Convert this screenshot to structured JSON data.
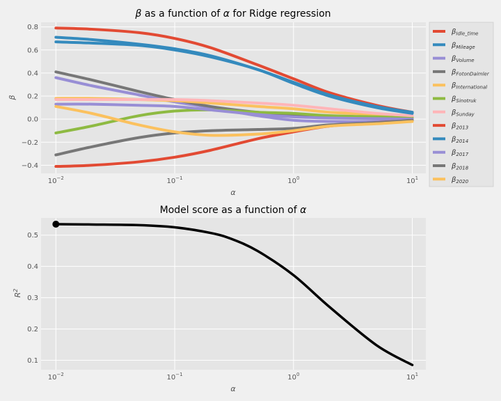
{
  "chart_data": [
    {
      "type": "line",
      "title_prefix": "β",
      "title_middle": " as a function of ",
      "title_alpha": "α",
      "title_suffix": " for Ridge regression",
      "xlabel": "α",
      "ylabel": "β",
      "xscale": "log",
      "xlim": [
        0.0075,
        13
      ],
      "ylim": [
        -0.47,
        0.84
      ],
      "x_tick_labels": [
        {
          "base": "10",
          "exp": "−2"
        },
        {
          "base": "10",
          "exp": "−1"
        },
        {
          "base": "10",
          "exp": "0"
        },
        {
          "base": "10",
          "exp": "1"
        }
      ],
      "y_ticks": [
        -0.4,
        -0.2,
        0.0,
        0.2,
        0.4,
        0.6,
        0.8
      ],
      "y_tick_labels": [
        "−0.4",
        "−0.2",
        "0.0",
        "0.2",
        "0.4",
        "0.6",
        "0.8"
      ],
      "grid": true,
      "legend_position": "outside-right",
      "x": [
        0.01,
        0.02,
        0.05,
        0.1,
        0.2,
        0.5,
        1,
        2,
        5,
        10
      ],
      "series": [
        {
          "sym": "β",
          "sub": "Idle_time",
          "color": "#E24A33",
          "values": [
            0.79,
            0.78,
            0.75,
            0.7,
            0.62,
            0.47,
            0.35,
            0.23,
            0.12,
            0.06
          ]
        },
        {
          "sym": "β",
          "sub": "Mileage",
          "color": "#348ABD",
          "values": [
            0.71,
            0.69,
            0.65,
            0.61,
            0.55,
            0.43,
            0.32,
            0.21,
            0.11,
            0.06
          ]
        },
        {
          "sym": "β",
          "sub": "Volume",
          "color": "#988ED5",
          "values": [
            0.36,
            0.29,
            0.21,
            0.15,
            0.1,
            0.03,
            -0.01,
            -0.02,
            -0.02,
            -0.01
          ]
        },
        {
          "sym": "β",
          "sub": "FotonDaimler",
          "color": "#777777",
          "values": [
            0.41,
            0.34,
            0.24,
            0.17,
            0.11,
            0.06,
            0.04,
            0.02,
            0.01,
            0.005
          ]
        },
        {
          "sym": "β",
          "sub": "International",
          "color": "#FBC15E",
          "values": [
            0.18,
            0.18,
            0.17,
            0.16,
            0.14,
            0.11,
            0.09,
            0.06,
            0.04,
            0.02
          ]
        },
        {
          "sym": "β",
          "sub": "Sinotruk",
          "color": "#8EBA42",
          "values": [
            -0.12,
            -0.06,
            0.03,
            0.07,
            0.08,
            0.06,
            0.05,
            0.03,
            0.02,
            0.01
          ]
        },
        {
          "sym": "β",
          "sub": "Sunday",
          "color": "#FFB5B8",
          "values": [
            0.17,
            0.17,
            0.17,
            0.17,
            0.16,
            0.14,
            0.12,
            0.09,
            0.05,
            0.03
          ]
        },
        {
          "sym": "β",
          "sub": "2013",
          "color": "#E24A33",
          "values": [
            -0.41,
            -0.4,
            -0.37,
            -0.33,
            -0.27,
            -0.17,
            -0.11,
            -0.06,
            -0.03,
            -0.01
          ]
        },
        {
          "sym": "β",
          "sub": "2014",
          "color": "#348ABD",
          "values": [
            0.67,
            0.66,
            0.64,
            0.6,
            0.54,
            0.43,
            0.31,
            0.2,
            0.1,
            0.05
          ]
        },
        {
          "sym": "β",
          "sub": "2017",
          "color": "#988ED5",
          "values": [
            0.13,
            0.13,
            0.12,
            0.11,
            0.08,
            0.04,
            0.02,
            0.01,
            0.005,
            0.0
          ]
        },
        {
          "sym": "β",
          "sub": "2018",
          "color": "#777777",
          "values": [
            -0.31,
            -0.24,
            -0.16,
            -0.12,
            -0.1,
            -0.09,
            -0.08,
            -0.05,
            -0.03,
            -0.01
          ]
        },
        {
          "sym": "β",
          "sub": "2020",
          "color": "#FBC15E",
          "values": [
            0.11,
            0.05,
            -0.05,
            -0.11,
            -0.14,
            -0.13,
            -0.1,
            -0.06,
            -0.04,
            -0.02
          ]
        }
      ]
    },
    {
      "type": "line",
      "title_prefix": "Model score as a function of ",
      "title_alpha": "α",
      "xlabel": "α",
      "ylabel_base": "R",
      "ylabel_exp": "2",
      "xscale": "log",
      "xlim": [
        0.0075,
        13
      ],
      "ylim": [
        0.07,
        0.555
      ],
      "x_tick_labels": [
        {
          "base": "10",
          "exp": "−2"
        },
        {
          "base": "10",
          "exp": "−1"
        },
        {
          "base": "10",
          "exp": "0"
        },
        {
          "base": "10",
          "exp": "1"
        }
      ],
      "y_ticks": [
        0.1,
        0.2,
        0.3,
        0.4,
        0.5
      ],
      "y_tick_labels": [
        "0.1",
        "0.2",
        "0.3",
        "0.4",
        "0.5"
      ],
      "grid": true,
      "x": [
        0.01,
        0.02,
        0.05,
        0.1,
        0.2,
        0.3,
        0.5,
        1,
        2,
        5,
        10
      ],
      "series": [
        {
          "color": "#000000",
          "values": [
            0.535,
            0.534,
            0.532,
            0.525,
            0.507,
            0.488,
            0.449,
            0.372,
            0.271,
            0.148,
            0.085
          ]
        }
      ],
      "marker": {
        "x": 0.01,
        "y": 0.535,
        "color": "#000000"
      }
    }
  ]
}
